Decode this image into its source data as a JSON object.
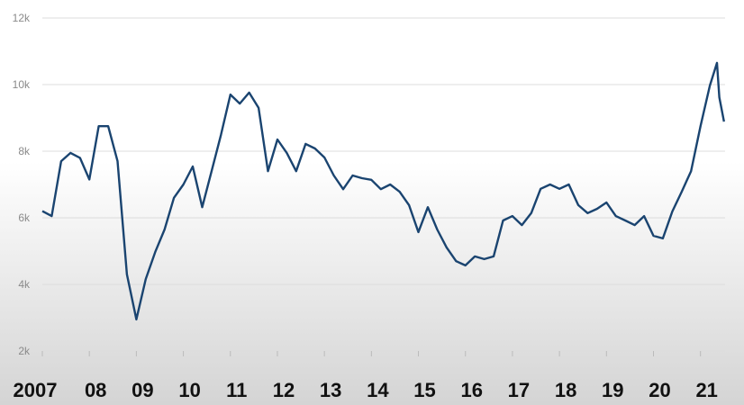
{
  "chart_data": {
    "type": "line",
    "x": [
      2007,
      2007.2,
      2007.4,
      2007.6,
      2007.8,
      2008,
      2008.2,
      2008.4,
      2008.6,
      2008.8,
      2009,
      2009.2,
      2009.4,
      2009.6,
      2009.8,
      2010,
      2010.2,
      2010.4,
      2010.6,
      2010.8,
      2011,
      2011.2,
      2011.4,
      2011.6,
      2011.8,
      2012,
      2012.2,
      2012.4,
      2012.6,
      2012.8,
      2013,
      2013.2,
      2013.4,
      2013.6,
      2013.8,
      2014,
      2014.2,
      2014.4,
      2014.6,
      2014.8,
      2015,
      2015.2,
      2015.4,
      2015.6,
      2015.8,
      2016,
      2016.2,
      2016.4,
      2016.6,
      2016.8,
      2017,
      2017.2,
      2017.4,
      2017.6,
      2017.8,
      2018,
      2018.2,
      2018.4,
      2018.6,
      2018.8,
      2019,
      2019.2,
      2019.4,
      2019.6,
      2019.8,
      2020,
      2020.2,
      2020.4,
      2020.6,
      2020.8,
      2021,
      2021.2,
      2021.35,
      2021.4,
      2021.5
    ],
    "series": [
      {
        "color": "#1a4470",
        "values": [
          6200,
          6050,
          7700,
          7950,
          7800,
          7150,
          8750,
          8750,
          7700,
          4300,
          2950,
          4160,
          4970,
          5650,
          6600,
          7000,
          7540,
          6320,
          7400,
          8490,
          9700,
          9430,
          9760,
          9300,
          7400,
          8350,
          7950,
          7400,
          8220,
          8080,
          7810,
          7270,
          6860,
          7270,
          7190,
          7140,
          6860,
          7000,
          6780,
          6380,
          5570,
          6320,
          5650,
          5110,
          4700,
          4570,
          4840,
          4760,
          4840,
          5920,
          6050,
          5780,
          6140,
          6870,
          7000,
          6870,
          7000,
          6380,
          6140,
          6270,
          6460,
          6050,
          5920,
          5780,
          6050,
          5460,
          5380,
          6190,
          6780,
          7400,
          8750,
          9970,
          10650,
          9620,
          8890
        ]
      }
    ],
    "xlim": [
      2007,
      2021.6
    ],
    "ylim": [
      2000,
      12000
    ],
    "xticks": [
      {
        "value": 2007,
        "label": "2007"
      },
      {
        "value": 2008,
        "label": "08"
      },
      {
        "value": 2009,
        "label": "09"
      },
      {
        "value": 2010,
        "label": "10"
      },
      {
        "value": 2011,
        "label": "11"
      },
      {
        "value": 2012,
        "label": "12"
      },
      {
        "value": 2013,
        "label": "13"
      },
      {
        "value": 2014,
        "label": "14"
      },
      {
        "value": 2015,
        "label": "15"
      },
      {
        "value": 2016,
        "label": "16"
      },
      {
        "value": 2017,
        "label": "17"
      },
      {
        "value": 2018,
        "label": "18"
      },
      {
        "value": 2019,
        "label": "19"
      },
      {
        "value": 2020,
        "label": "20"
      },
      {
        "value": 2021,
        "label": "21"
      }
    ],
    "yticks": [
      {
        "value": 2000,
        "label": "2k"
      },
      {
        "value": 4000,
        "label": "4k"
      },
      {
        "value": 6000,
        "label": "6k"
      },
      {
        "value": 8000,
        "label": "8k"
      },
      {
        "value": 10000,
        "label": "10k"
      },
      {
        "value": 12000,
        "label": "12k"
      }
    ],
    "grid": true
  }
}
